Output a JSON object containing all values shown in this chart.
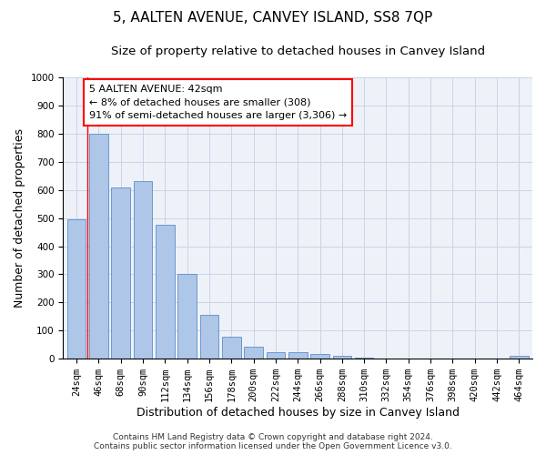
{
  "title": "5, AALTEN AVENUE, CANVEY ISLAND, SS8 7QP",
  "subtitle": "Size of property relative to detached houses in Canvey Island",
  "xlabel": "Distribution of detached houses by size in Canvey Island",
  "ylabel": "Number of detached properties",
  "footer_line1": "Contains HM Land Registry data © Crown copyright and database right 2024.",
  "footer_line2": "Contains public sector information licensed under the Open Government Licence v3.0.",
  "categories": [
    "24sqm",
    "46sqm",
    "68sqm",
    "90sqm",
    "112sqm",
    "134sqm",
    "156sqm",
    "178sqm",
    "200sqm",
    "222sqm",
    "244sqm",
    "266sqm",
    "288sqm",
    "310sqm",
    "332sqm",
    "354sqm",
    "376sqm",
    "398sqm",
    "420sqm",
    "442sqm",
    "464sqm"
  ],
  "values": [
    495,
    800,
    610,
    630,
    475,
    302,
    157,
    78,
    44,
    22,
    22,
    17,
    11,
    5,
    2,
    2,
    2,
    1,
    0,
    0,
    11
  ],
  "bar_color": "#aec6e8",
  "bar_edge_color": "#5b8fc9",
  "annotation_box_text": "5 AALTEN AVENUE: 42sqm\n← 8% of detached houses are smaller (308)\n91% of semi-detached houses are larger (3,306) →",
  "annotation_box_color": "white",
  "annotation_box_edge_color": "red",
  "property_line_x": 0.5,
  "ylim": [
    0,
    1000
  ],
  "yticks": [
    0,
    100,
    200,
    300,
    400,
    500,
    600,
    700,
    800,
    900,
    1000
  ],
  "grid_color": "#c8d4e8",
  "background_color": "#eef2f8",
  "title_fontsize": 11,
  "subtitle_fontsize": 9.5,
  "xlabel_fontsize": 9,
  "ylabel_fontsize": 9,
  "tick_fontsize": 7.5,
  "annotation_fontsize": 8,
  "footer_fontsize": 6.5
}
